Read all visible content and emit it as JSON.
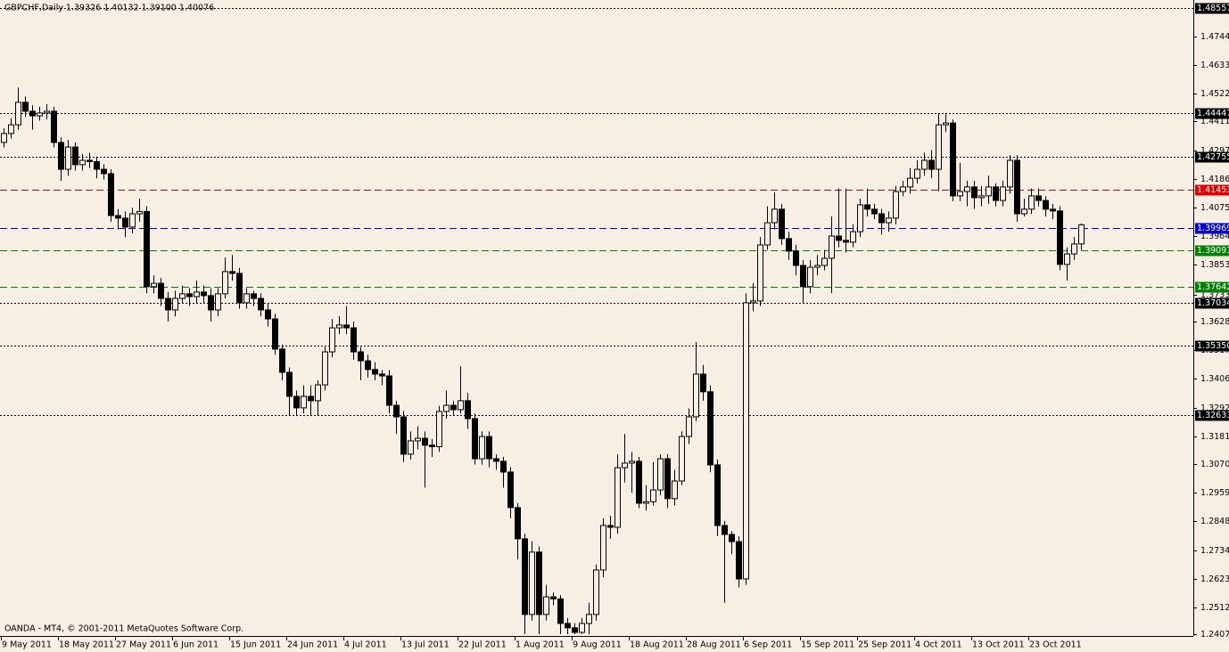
{
  "chart_data": {
    "type": "candlestick",
    "title": "GBPCHF,Daily  1.39326 1.40132 1.39100 1.40076",
    "annotation": "OANDA - MT4, © 2001-2011 MetaQuotes Software Corp.",
    "up_color": "#f8efe4",
    "down_color": "#000000",
    "categories": [
      "9 May 2011",
      null,
      null,
      null,
      null,
      null,
      null,
      null,
      "18 May 2011",
      null,
      null,
      null,
      null,
      null,
      null,
      null,
      "27 May 2011",
      null,
      null,
      null,
      null,
      null,
      null,
      null,
      "6 Jun 2011",
      null,
      null,
      null,
      null,
      null,
      null,
      null,
      "15 Jun 2011",
      null,
      null,
      null,
      null,
      null,
      null,
      null,
      "24 Jun 2011",
      null,
      null,
      null,
      null,
      null,
      null,
      null,
      "4 Jul 2011",
      null,
      null,
      null,
      null,
      null,
      null,
      null,
      "13 Jul 2011",
      null,
      null,
      null,
      null,
      null,
      null,
      null,
      "22 Jul 2011",
      null,
      null,
      null,
      null,
      null,
      null,
      null,
      "1 Aug 2011",
      null,
      null,
      null,
      null,
      null,
      null,
      null,
      "9 Aug 2011",
      null,
      null,
      null,
      null,
      null,
      null,
      null,
      "18 Aug 2011",
      null,
      null,
      null,
      null,
      null,
      null,
      null,
      "28 Aug 2011",
      null,
      null,
      null,
      null,
      null,
      null,
      null,
      "6 Sep 2011",
      null,
      null,
      null,
      null,
      null,
      null,
      null,
      "15 Sep 2011",
      null,
      null,
      null,
      null,
      null,
      null,
      null,
      "25 Sep 2011",
      null,
      null,
      null,
      null,
      null,
      null,
      null,
      "4 Oct 2011",
      null,
      null,
      null,
      null,
      null,
      null,
      null,
      "13 Oct 2011",
      null,
      null,
      null,
      null,
      null,
      null,
      null,
      "23 Oct 2011",
      null,
      null,
      null,
      null,
      null,
      null,
      null
    ],
    "open": [
      1.433,
      1.4365,
      1.4399,
      1.4487,
      1.4452,
      1.4434,
      1.4445,
      1.4452,
      1.433,
      1.4225,
      1.4312,
      1.4243,
      1.426,
      1.4255,
      1.4225,
      1.4208,
      1.4044,
      1.4034,
      1.3999,
      1.4051,
      1.406,
      1.3766,
      1.3779,
      1.372,
      1.3675,
      1.372,
      1.3738,
      1.3727,
      1.3745,
      1.3731,
      1.3675,
      1.3738,
      1.3825,
      1.3818,
      1.3703,
      1.3738,
      1.372,
      1.3675,
      1.364,
      1.3522,
      1.3431,
      1.3337,
      1.3292,
      1.3337,
      1.332,
      1.3382,
      1.3511,
      1.3605,
      1.3616,
      1.3605,
      1.3511,
      1.3476,
      1.3442,
      1.3424,
      1.3417,
      1.3302,
      1.3257,
      1.3111,
      1.3163,
      1.3173,
      1.3146,
      1.314,
      1.3278,
      1.3302,
      1.3285,
      1.332,
      1.325,
      1.3093,
      1.318,
      1.3093,
      1.3083,
      1.3041,
      1.2902,
      1.278,
      1.2484,
      1.2728,
      1.2484,
      1.2553,
      1.2545,
      1.2449,
      1.2432,
      1.2414,
      1.2449,
      1.2484,
      1.2658,
      1.2832,
      1.2825,
      1.3058,
      1.3076,
      1.3083,
      1.2919,
      1.2925,
      1.2971,
      1.3093,
      1.2937,
      1.3006,
      1.318,
      1.3257,
      1.3424,
      1.3355,
      1.3069,
      1.2832,
      1.2797,
      1.2769,
      1.2623,
      1.3703,
      1.371,
      1.3929,
      1.4016,
      1.4069,
      1.3954,
      1.3905,
      1.3849,
      1.3766,
      1.3842,
      1.3849,
      1.3877,
      1.3964,
      1.3947,
      1.394,
      1.3981,
      1.4086,
      1.4069,
      1.4051,
      1.4016,
      1.4034,
      1.4138,
      1.4156,
      1.419,
      1.4225,
      1.426,
      1.4225,
      1.4399,
      1.4406,
      1.4121,
      1.4138,
      1.4156,
      1.4114,
      1.4121,
      1.4156,
      1.4103,
      1.4156,
      1.426,
      1.4051,
      1.4069,
      1.4121,
      1.4103,
      1.4069,
      1.4062,
      1.3853,
      1.3894,
      1.3933
    ],
    "high": [
      1.4385,
      1.4425,
      1.4545,
      1.451,
      1.4475,
      1.447,
      1.448,
      1.447,
      1.435,
      1.434,
      1.433,
      1.4285,
      1.429,
      1.4275,
      1.4245,
      1.4225,
      1.407,
      1.406,
      1.4075,
      1.411,
      1.408,
      1.381,
      1.38,
      1.3745,
      1.375,
      1.377,
      1.376,
      1.379,
      1.377,
      1.376,
      1.376,
      1.388,
      1.389,
      1.384,
      1.376,
      1.375,
      1.374,
      1.37,
      1.366,
      1.354,
      1.345,
      1.336,
      1.338,
      1.338,
      1.34,
      1.353,
      1.364,
      1.365,
      1.369,
      1.363,
      1.353,
      1.35,
      1.347,
      1.344,
      1.344,
      1.332,
      1.328,
      1.32,
      1.322,
      1.32,
      1.317,
      1.33,
      1.336,
      1.332,
      1.3455,
      1.335,
      1.327,
      1.32,
      1.32,
      1.311,
      1.31,
      1.306,
      1.292,
      1.28,
      1.277,
      1.275,
      1.26,
      1.257,
      1.256,
      1.247,
      1.245,
      1.247,
      1.253,
      1.268,
      1.286,
      1.287,
      1.311,
      1.319,
      1.312,
      1.31,
      1.299,
      1.308,
      1.311,
      1.311,
      1.305,
      1.32,
      1.329,
      1.355,
      1.346,
      1.338,
      1.309,
      1.285,
      1.281,
      1.279,
      1.374,
      1.378,
      1.396,
      1.408,
      1.4135,
      1.409,
      1.398,
      1.393,
      1.387,
      1.387,
      1.389,
      1.391,
      1.404,
      1.415,
      1.415,
      1.401,
      1.411,
      1.415,
      1.409,
      1.407,
      1.406,
      1.416,
      1.418,
      1.423,
      1.426,
      1.429,
      1.43,
      1.4445,
      1.4445,
      1.442,
      1.425,
      1.418,
      1.418,
      1.416,
      1.42,
      1.417,
      1.418,
      1.428,
      1.428,
      1.411,
      1.415,
      1.415,
      1.412,
      1.409,
      1.408,
      1.392,
      1.396,
      1.4013
    ],
    "low": [
      1.431,
      1.4345,
      1.438,
      1.443,
      1.438,
      1.4415,
      1.442,
      1.431,
      1.418,
      1.42,
      1.422,
      1.422,
      1.423,
      1.419,
      1.4185,
      1.402,
      1.399,
      1.396,
      1.3975,
      1.402,
      1.374,
      1.374,
      1.369,
      1.363,
      1.365,
      1.37,
      1.369,
      1.37,
      1.37,
      1.363,
      1.365,
      1.372,
      1.379,
      1.368,
      1.368,
      1.369,
      1.365,
      1.361,
      1.35,
      1.34,
      1.326,
      1.326,
      1.327,
      1.326,
      1.326,
      1.336,
      1.349,
      1.358,
      1.358,
      1.348,
      1.34,
      1.341,
      1.34,
      1.338,
      1.327,
      1.319,
      1.308,
      1.309,
      1.313,
      1.298,
      1.31,
      1.312,
      1.325,
      1.326,
      1.327,
      1.321,
      1.307,
      1.307,
      1.306,
      1.305,
      1.298,
      1.286,
      1.27,
      1.2407,
      1.246,
      1.2407,
      1.246,
      1.252,
      1.2407,
      1.2407,
      1.2407,
      1.2407,
      1.2407,
      1.246,
      1.263,
      1.278,
      1.28,
      1.3,
      1.296,
      1.29,
      1.289,
      1.291,
      1.295,
      1.29,
      1.291,
      1.299,
      1.315,
      1.324,
      1.332,
      1.304,
      1.279,
      1.253,
      1.272,
      1.259,
      1.26,
      1.367,
      1.369,
      1.391,
      1.399,
      1.393,
      1.387,
      1.381,
      1.37,
      1.374,
      1.381,
      1.383,
      1.374,
      1.392,
      1.39,
      1.392,
      1.396,
      1.404,
      1.403,
      1.397,
      1.398,
      1.401,
      1.412,
      1.413,
      1.417,
      1.42,
      1.419,
      1.414,
      1.437,
      1.41,
      1.41,
      1.408,
      1.407,
      1.408,
      1.409,
      1.408,
      1.408,
      1.413,
      1.402,
      1.404,
      1.405,
      1.408,
      1.404,
      1.403,
      1.383,
      1.379,
      1.387,
      1.391
    ],
    "close": [
      1.4365,
      1.4399,
      1.4487,
      1.4452,
      1.4434,
      1.4445,
      1.4452,
      1.433,
      1.4225,
      1.4312,
      1.4243,
      1.426,
      1.4255,
      1.4225,
      1.4208,
      1.4044,
      1.4034,
      1.3999,
      1.4051,
      1.406,
      1.3766,
      1.3779,
      1.372,
      1.3675,
      1.372,
      1.3738,
      1.3727,
      1.3745,
      1.3731,
      1.3675,
      1.3738,
      1.3825,
      1.3818,
      1.3703,
      1.3738,
      1.372,
      1.3675,
      1.364,
      1.3522,
      1.3431,
      1.3337,
      1.3292,
      1.3337,
      1.332,
      1.3382,
      1.3511,
      1.3605,
      1.3616,
      1.3605,
      1.3511,
      1.3476,
      1.3442,
      1.3424,
      1.3417,
      1.3302,
      1.3257,
      1.3111,
      1.3163,
      1.3173,
      1.3146,
      1.314,
      1.3278,
      1.3302,
      1.3285,
      1.332,
      1.325,
      1.3093,
      1.318,
      1.3093,
      1.3083,
      1.3041,
      1.2902,
      1.278,
      1.2484,
      1.2728,
      1.2484,
      1.2553,
      1.2545,
      1.2449,
      1.2432,
      1.2414,
      1.2449,
      1.2484,
      1.2658,
      1.2832,
      1.2825,
      1.3058,
      1.3076,
      1.3083,
      1.2919,
      1.2925,
      1.2971,
      1.3093,
      1.2937,
      1.3006,
      1.318,
      1.3257,
      1.3424,
      1.3355,
      1.3069,
      1.2832,
      1.2797,
      1.2769,
      1.2623,
      1.3703,
      1.371,
      1.3929,
      1.4016,
      1.4069,
      1.3954,
      1.3905,
      1.3849,
      1.3766,
      1.3842,
      1.3849,
      1.3877,
      1.3964,
      1.3947,
      1.394,
      1.3981,
      1.4086,
      1.4069,
      1.4051,
      1.4016,
      1.4034,
      1.4138,
      1.4156,
      1.419,
      1.4225,
      1.426,
      1.4225,
      1.4399,
      1.4406,
      1.4121,
      1.4138,
      1.4156,
      1.4114,
      1.4121,
      1.4156,
      1.4103,
      1.4156,
      1.426,
      1.4051,
      1.4069,
      1.4121,
      1.4103,
      1.4069,
      1.4062,
      1.3853,
      1.3894,
      1.3933,
      1.4008
    ],
    "ylim": [
      1.24,
      1.4887
    ],
    "yticks": [
      {
        "value": 1.2407,
        "label": "1.24070"
      },
      1.25127,
      1.26237,
      1.27347,
      1.28487,
      1.29597,
      1.30707,
      1.31817,
      1.32927,
      1.34067,
      1.35177,
      1.36287,
      1.37337,
      1.38537,
      1.39647,
      1.40757,
      1.41867,
      1.42977,
      1.44117,
      1.45227,
      1.46337,
      1.47447
    ],
    "levels": [
      {
        "value": 1.48557,
        "color": "#000000",
        "style": "dotted"
      },
      {
        "value": 1.44447,
        "color": "#000000",
        "style": "dotted"
      },
      {
        "value": 1.42755,
        "color": "#000000",
        "style": "dotted"
      },
      {
        "value": 1.41453,
        "color": "#e00000",
        "style": "dashed"
      },
      {
        "value": 1.39969,
        "color": "#0000d0",
        "style": "dashed"
      },
      {
        "value": 1.39091,
        "color": "#008000",
        "style": "dashed"
      },
      {
        "value": 1.37642,
        "color": "#008000",
        "style": "dashed"
      },
      {
        "value": 1.37034,
        "color": "#000000",
        "style": "dotted"
      },
      {
        "value": 1.3535,
        "label": "1.35350",
        "color": "#000000",
        "style": "dotted"
      },
      {
        "value": 1.32633,
        "color": "#000000",
        "style": "dotted"
      }
    ]
  }
}
